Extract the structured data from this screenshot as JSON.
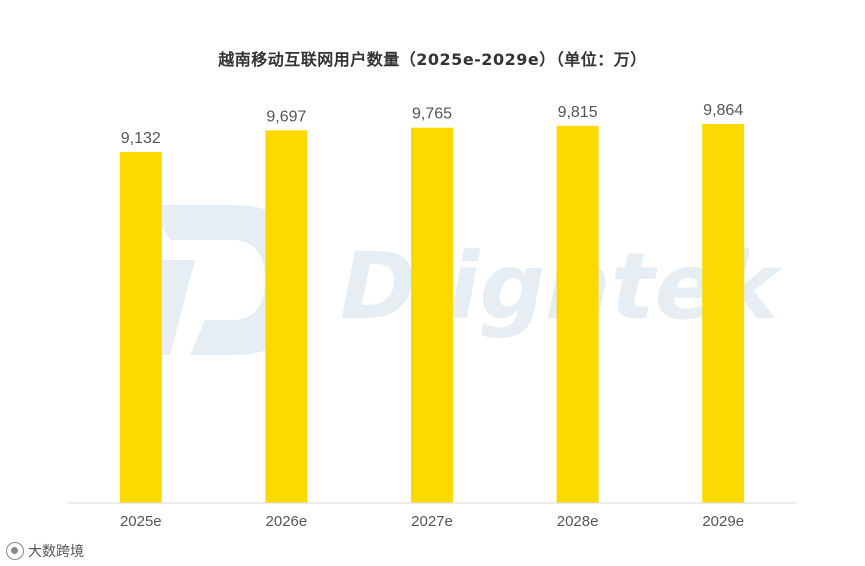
{
  "chart_data": {
    "type": "bar",
    "title": "越南移动互联网用户数量（2025e-2029e）（单位：万）",
    "categories": [
      "2025e",
      "2026e",
      "2027e",
      "2028e",
      "2029e"
    ],
    "values": [
      9132,
      9697,
      9765,
      9815,
      9864
    ],
    "value_labels": [
      "9,132",
      "9,697",
      "9,765",
      "9,815",
      "9,864"
    ],
    "ylim": [
      0,
      11500
    ],
    "grid": false,
    "legend": "none",
    "bar_color": "#fcd900",
    "axis_color": "#d9d9d9"
  },
  "watermark": {
    "text": "Dlightek",
    "color": "#e6edf3"
  },
  "source_logo": {
    "icon": "source-logo-icon",
    "text": "大数跨境"
  }
}
